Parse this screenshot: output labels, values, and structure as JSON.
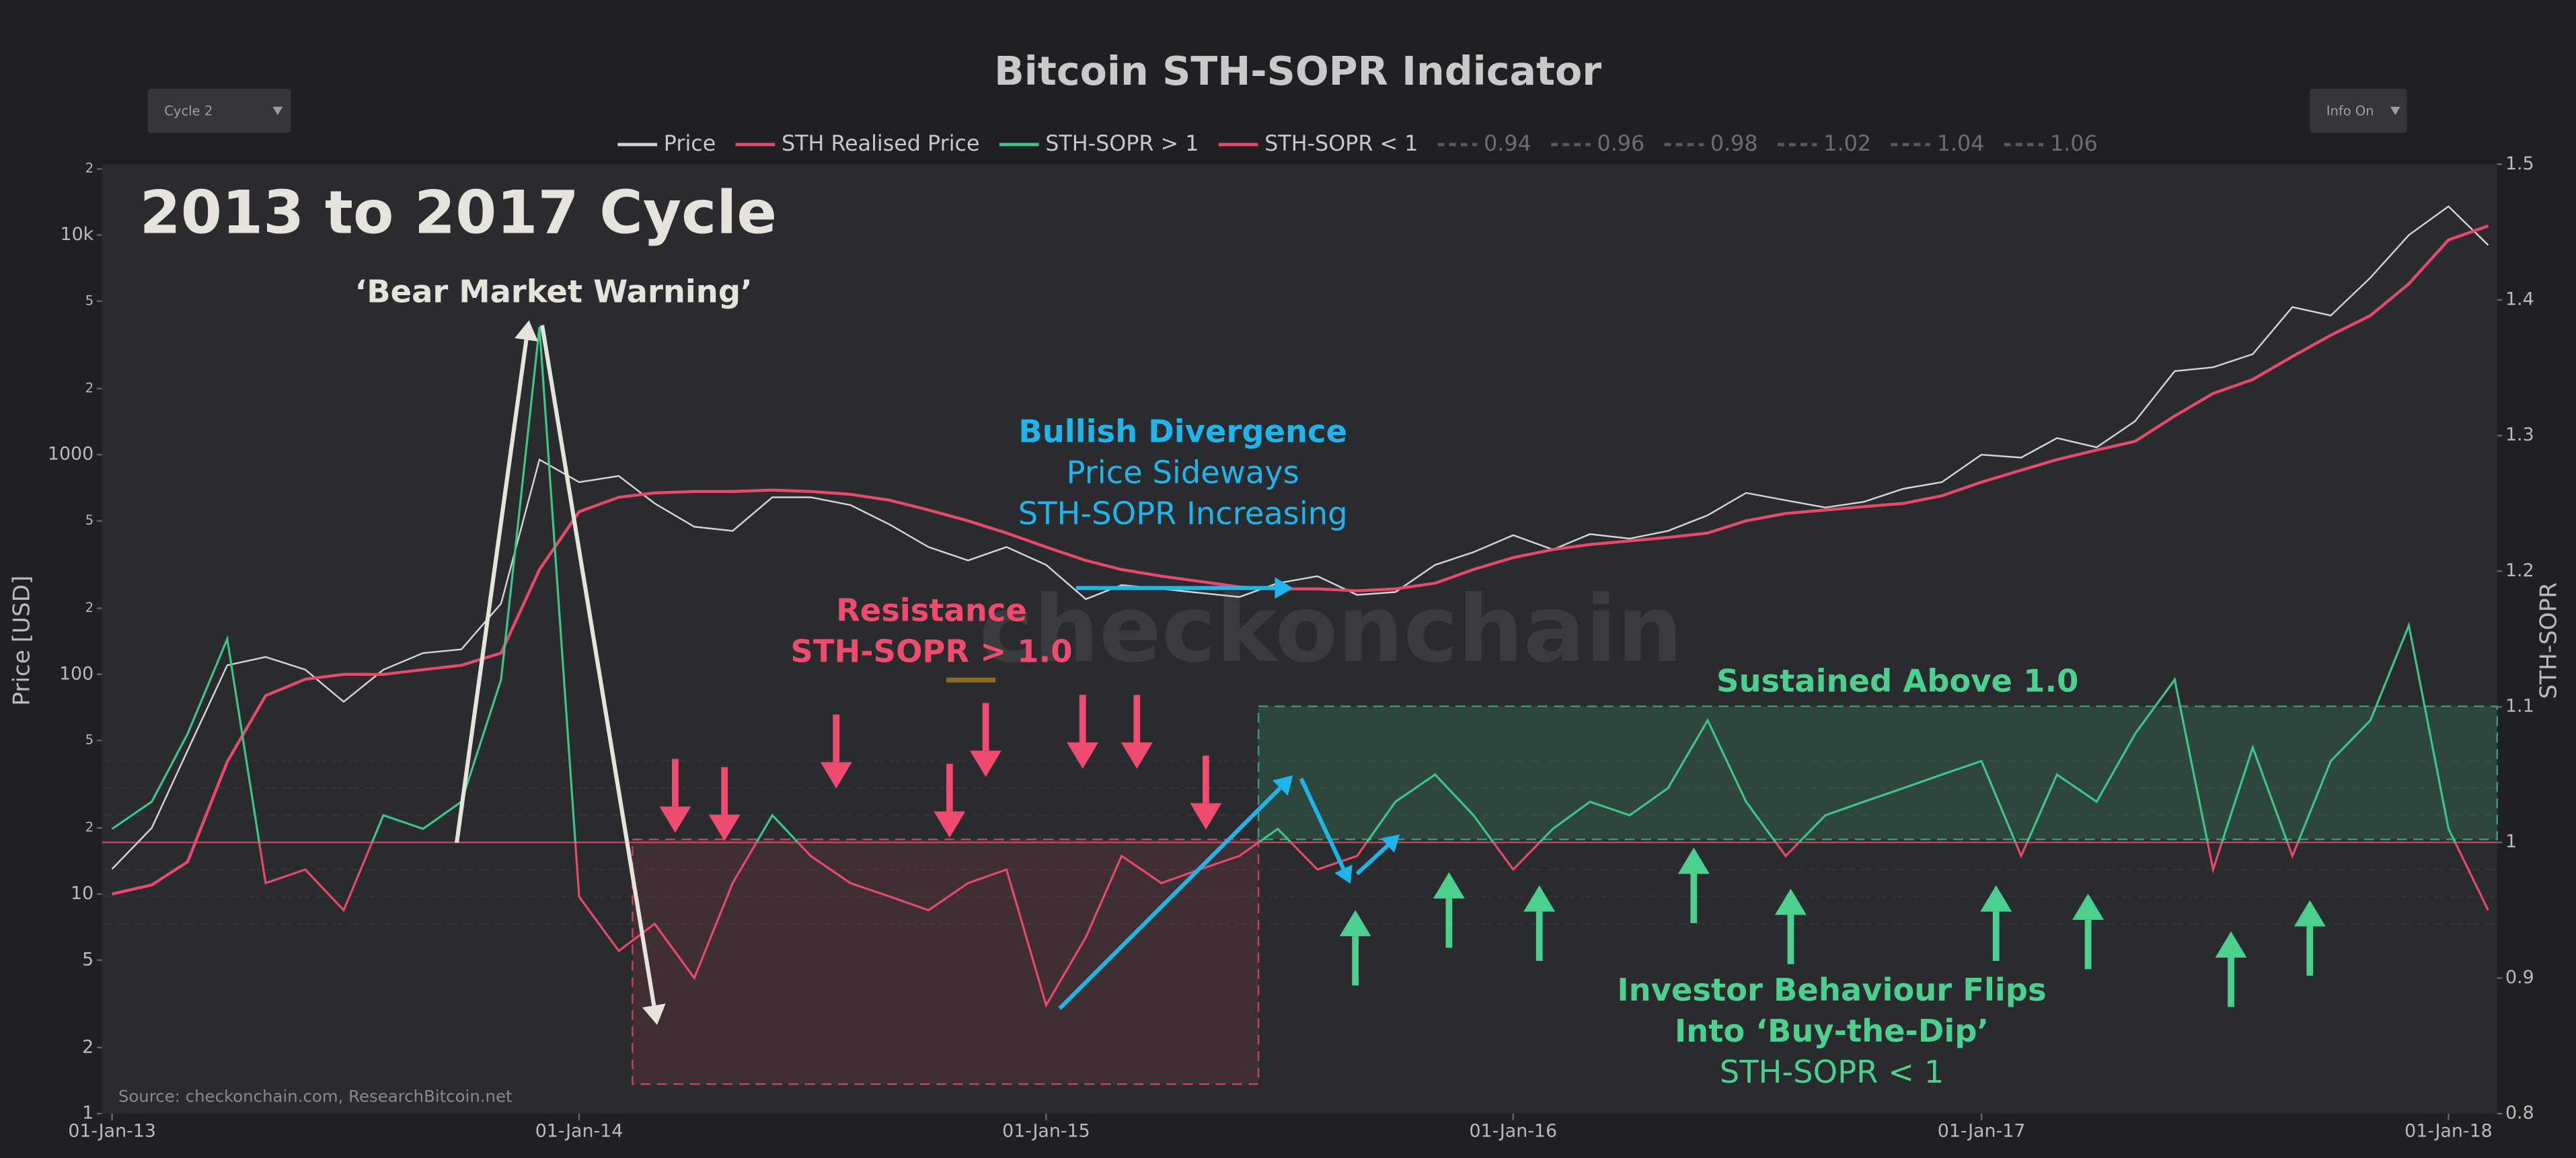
{
  "chart_data": {
    "type": "line",
    "title": "Bitcoin STH-SOPR Indicator",
    "controls": [
      "Cycle 2",
      "Info On"
    ],
    "ylabel": "Price [USD]",
    "y2label": "STH-SOPR",
    "log_y": true,
    "x": [
      "2013-01-01",
      "2013-02-01",
      "2013-03-01",
      "2013-04-01",
      "2013-05-01",
      "2013-06-01",
      "2013-07-01",
      "2013-08-01",
      "2013-09-01",
      "2013-10-01",
      "2013-11-01",
      "2013-12-01",
      "2014-01-01",
      "2014-02-01",
      "2014-03-01",
      "2014-04-01",
      "2014-05-01",
      "2014-06-01",
      "2014-07-01",
      "2014-08-01",
      "2014-09-01",
      "2014-10-01",
      "2014-11-01",
      "2014-12-01",
      "2015-01-01",
      "2015-02-01",
      "2015-03-01",
      "2015-04-01",
      "2015-05-01",
      "2015-06-01",
      "2015-07-01",
      "2015-08-01",
      "2015-09-01",
      "2015-10-01",
      "2015-11-01",
      "2015-12-01",
      "2016-01-01",
      "2016-02-01",
      "2016-03-01",
      "2016-04-01",
      "2016-05-01",
      "2016-06-01",
      "2016-07-01",
      "2016-08-01",
      "2016-09-01",
      "2016-10-01",
      "2016-11-01",
      "2016-12-01",
      "2017-01-01",
      "2017-02-01",
      "2017-03-01",
      "2017-04-01",
      "2017-05-01",
      "2017-06-01",
      "2017-07-01",
      "2017-08-01",
      "2017-09-01",
      "2017-10-01",
      "2017-11-01",
      "2017-12-01",
      "2018-01-01",
      "2018-02-01"
    ],
    "xlim": [
      "2012-12-24",
      "2018-02-08"
    ],
    "xticks": [
      {
        "value": "2013-01-01",
        "label": "01-Jan-13"
      },
      {
        "value": "2014-01-01",
        "label": "01-Jan-14"
      },
      {
        "value": "2015-01-01",
        "label": "01-Jan-15"
      },
      {
        "value": "2016-01-01",
        "label": "01-Jan-16"
      },
      {
        "value": "2017-01-01",
        "label": "01-Jan-17"
      },
      {
        "value": "2018-01-01",
        "label": "01-Jan-18"
      }
    ],
    "ylim": [
      1,
      21000
    ],
    "yticks": [
      1,
      2,
      5,
      10,
      {
        "value": 20,
        "label": "2"
      },
      {
        "value": 50,
        "label": "5"
      },
      100,
      {
        "value": 200,
        "label": "2"
      },
      {
        "value": 500,
        "label": "5"
      },
      1000,
      {
        "value": 2000,
        "label": "2"
      },
      {
        "value": 5000,
        "label": "5"
      },
      {
        "value": 10000,
        "label": "10k"
      },
      {
        "value": 20000,
        "label": "2"
      }
    ],
    "y2lim": [
      0.8,
      1.5
    ],
    "y2ticks": [
      0.8,
      0.9,
      1,
      1.1,
      1.2,
      1.3,
      1.4,
      1.5
    ],
    "series": [
      {
        "name": "Price",
        "color": "#d4d4d4",
        "values": [
          13,
          20,
          45,
          110,
          120,
          105,
          75,
          105,
          125,
          130,
          210,
          950,
          750,
          800,
          600,
          470,
          450,
          640,
          640,
          590,
          480,
          380,
          330,
          380,
          315,
          220,
          255,
          245,
          235,
          225,
          260,
          280,
          230,
          237,
          315,
          360,
          430,
          370,
          435,
          415,
          450,
          530,
          670,
          620,
          575,
          610,
          700,
          750,
          1000,
          970,
          1190,
          1080,
          1420,
          2400,
          2500,
          2870,
          4700,
          4300,
          6400,
          10000,
          13500,
          9000
        ]
      },
      {
        "name": "STH Realised Price",
        "color": "#e8496b",
        "values": [
          10,
          11,
          14,
          40,
          80,
          95,
          100,
          100,
          105,
          110,
          125,
          300,
          550,
          640,
          670,
          680,
          680,
          690,
          680,
          660,
          620,
          560,
          500,
          440,
          380,
          330,
          300,
          280,
          265,
          250,
          245,
          245,
          240,
          245,
          260,
          300,
          340,
          370,
          390,
          405,
          420,
          440,
          500,
          540,
          560,
          580,
          600,
          650,
          750,
          850,
          950,
          1050,
          1150,
          1500,
          1900,
          2200,
          2800,
          3500,
          4300,
          6000,
          9500,
          11000
        ]
      },
      {
        "names": [
          "STH-SOPR > 1",
          "STH-SOPR < 1"
        ],
        "colors": [
          "#3fc48a",
          "#e8496b"
        ],
        "threshold": 1,
        "axis": "y2",
        "values": [
          1.01,
          1.03,
          1.08,
          1.15,
          0.97,
          0.98,
          0.95,
          1.02,
          1.01,
          1.03,
          1.12,
          1.38,
          0.96,
          0.92,
          0.94,
          0.9,
          0.97,
          1.02,
          0.99,
          0.97,
          0.96,
          0.95,
          0.97,
          0.98,
          0.88,
          0.93,
          0.99,
          0.97,
          0.98,
          0.99,
          1.01,
          0.98,
          0.99,
          1.03,
          1.05,
          1.02,
          0.98,
          1.01,
          1.03,
          1.02,
          1.04,
          1.09,
          1.03,
          0.99,
          1.02,
          1.03,
          1.04,
          1.05,
          1.06,
          0.99,
          1.05,
          1.03,
          1.08,
          1.12,
          0.98,
          1.07,
          0.99,
          1.06,
          1.09,
          1.16,
          1.01,
          0.95
        ]
      }
    ],
    "reference_lines": [
      {
        "name": "0.94",
        "value": 0.94
      },
      {
        "name": "0.96",
        "value": 0.96
      },
      {
        "name": "0.98",
        "value": 0.98
      },
      {
        "name": "1.02",
        "value": 1.02
      },
      {
        "name": "1.04",
        "value": 1.04
      },
      {
        "name": "1.06",
        "value": 1.06
      }
    ],
    "annotations": {
      "cycle": "2013 to 2017 Cycle",
      "bear": "‘Bear Market Warning’",
      "bullish": [
        "Bullish Divergence",
        "Price Sideways",
        "STH-SOPR Increasing"
      ],
      "resistance": [
        "Resistance",
        "STH-SOPR > 1.0"
      ],
      "sustained": "Sustained Above 1.0",
      "flips": [
        "Investor Behaviour Flips",
        "Into ‘Buy-the-Dip’",
        "STH-SOPR < 1"
      ]
    },
    "source": "Source: checkonchain.com, ResearchBitcoin.net",
    "watermark": "checkonchain"
  }
}
